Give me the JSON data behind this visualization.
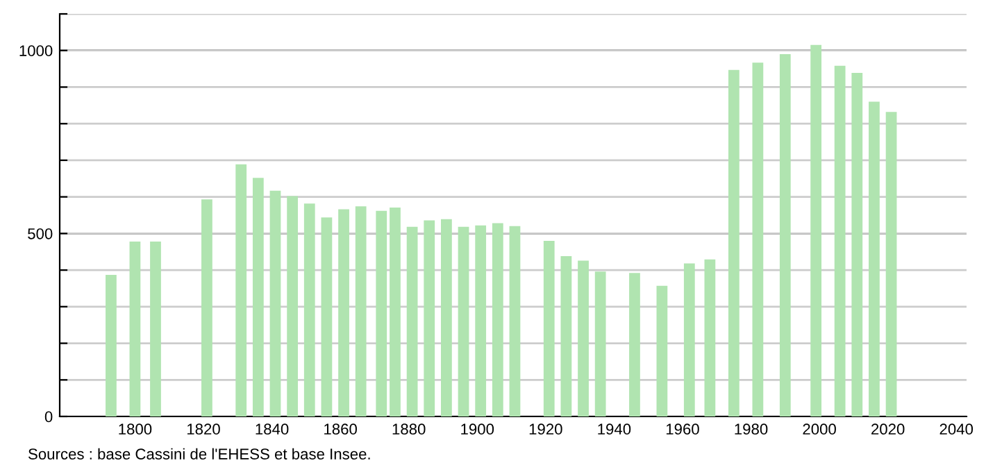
{
  "chart_data": {
    "type": "bar",
    "x": [
      "1793",
      "1800",
      "1806",
      "1821",
      "1831",
      "1836",
      "1841",
      "1846",
      "1851",
      "1856",
      "1861",
      "1866",
      "1872",
      "1876",
      "1881",
      "1886",
      "1891",
      "1896",
      "1901",
      "1906",
      "1911",
      "1921",
      "1926",
      "1931",
      "1936",
      "1946",
      "1954",
      "1962",
      "1968",
      "1975",
      "1982",
      "1990",
      "1999",
      "2006",
      "2011",
      "2016",
      "2021"
    ],
    "values": [
      387,
      478,
      478,
      593,
      689,
      652,
      617,
      602,
      582,
      544,
      566,
      574,
      562,
      571,
      518,
      536,
      539,
      518,
      522,
      528,
      520,
      480,
      438,
      426,
      396,
      392,
      357,
      418,
      429,
      947,
      967,
      990,
      1015,
      958,
      939,
      860,
      832
    ],
    "color": "#b0e4b0",
    "xlim": [
      "1778",
      "2043"
    ],
    "xticks": [
      "1800",
      "1820",
      "1840",
      "1860",
      "1880",
      "1900",
      "1920",
      "1940",
      "1960",
      "1980",
      "2000",
      "2020",
      "2040"
    ],
    "ylim": [
      0,
      1100
    ],
    "yticks": [
      0,
      {
        "value": 100,
        "label": null
      },
      {
        "value": 200,
        "label": null
      },
      {
        "value": 300,
        "label": null
      },
      {
        "value": 400,
        "label": null
      },
      500,
      {
        "value": 600,
        "label": null
      },
      {
        "value": 700,
        "label": null
      },
      {
        "value": 800,
        "label": null
      },
      {
        "value": 900,
        "label": null
      },
      1000,
      {
        "value": 1100,
        "label": null
      }
    ],
    "grid": "y",
    "annotations": [
      "Sources : base Cassini de l'EHESS et base Insee."
    ]
  }
}
